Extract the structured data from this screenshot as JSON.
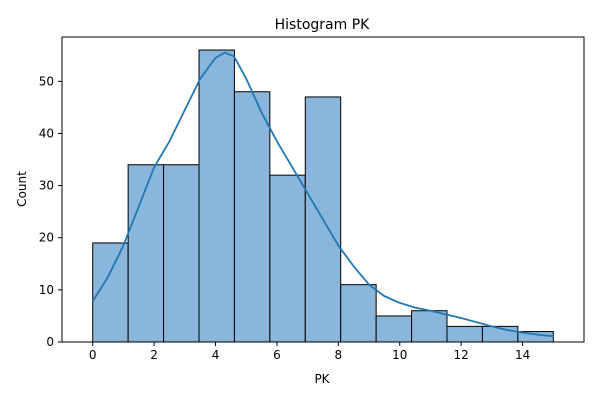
{
  "chart_data": {
    "type": "bar",
    "title": "Histogram PK",
    "xlabel": "PK",
    "ylabel": "Count",
    "xlim": [
      -1,
      16
    ],
    "ylim": [
      0,
      58.5
    ],
    "x_ticks": [
      0,
      2,
      4,
      6,
      8,
      10,
      12,
      14
    ],
    "y_ticks": [
      0,
      10,
      20,
      30,
      40,
      50
    ],
    "grid": false,
    "legend": "none",
    "bin_edges": [
      0,
      1.154,
      2.308,
      3.462,
      4.615,
      5.769,
      6.923,
      8.077,
      9.231,
      10.385,
      11.538,
      12.692,
      13.846,
      15
    ],
    "values": [
      19,
      34,
      34,
      56,
      48,
      32,
      47,
      11,
      5,
      6,
      3,
      3,
      2
    ],
    "kde": {
      "x": [
        0,
        0.5,
        1,
        1.5,
        2,
        2.5,
        3,
        3.5,
        4,
        4.3,
        4.6,
        5,
        5.5,
        6,
        6.5,
        7,
        7.5,
        8,
        8.5,
        9,
        9.5,
        10,
        10.5,
        11,
        11.5,
        12,
        12.5,
        13,
        13.5,
        14,
        14.5,
        15
      ],
      "y": [
        7.8,
        12.5,
        18.5,
        26,
        33.5,
        38.5,
        44.5,
        50.5,
        54.5,
        55.5,
        54.8,
        50.5,
        44,
        38.5,
        33.5,
        28.5,
        23.5,
        18.5,
        14.5,
        11,
        8.8,
        7.5,
        6.6,
        6,
        5.3,
        4.6,
        3.8,
        3.0,
        2.3,
        1.8,
        1.4,
        1.1
      ]
    },
    "colors": {
      "bar_fill": "#89b6da",
      "bar_edge": "#000000",
      "kde_line": "#1f77b4"
    }
  }
}
